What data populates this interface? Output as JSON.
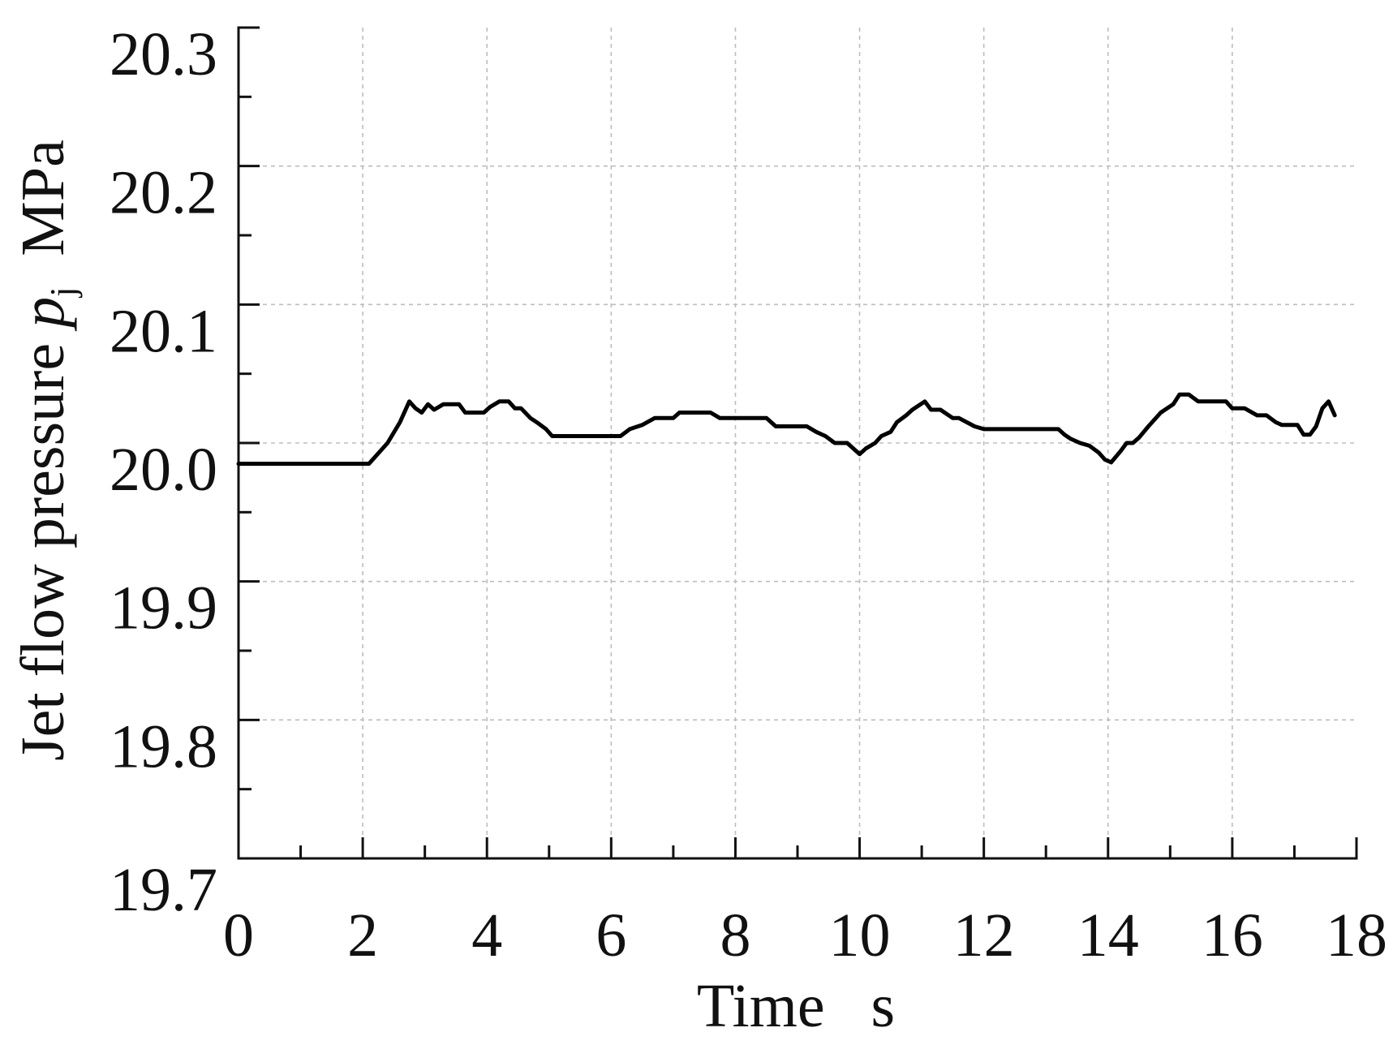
{
  "chart_data": {
    "type": "line",
    "xlabel": "Time   s",
    "ylabel": {
      "prefix": "Jet flow pressure ",
      "symbol": "p",
      "subscript": "j",
      "unit": "  MPa"
    },
    "xlim": [
      0,
      18
    ],
    "ylim": [
      19.7,
      20.3
    ],
    "x_ticks": [
      0,
      2,
      4,
      6,
      8,
      10,
      12,
      14,
      16,
      18
    ],
    "x_tick_labels": [
      "0",
      "2",
      "4",
      "6",
      "8",
      "10",
      "12",
      "14",
      "16",
      "18"
    ],
    "x_minor_step": 1,
    "y_ticks": [
      19.7,
      19.8,
      19.9,
      20.0,
      20.1,
      20.2,
      20.3
    ],
    "y_tick_labels": [
      "19.7",
      "19.8",
      "19.9",
      "20.0",
      "20.1",
      "20.2",
      "20.3"
    ],
    "y_minor_step": 0.05,
    "grid": true,
    "line_color": "#000000",
    "series": [
      {
        "x": [
          0,
          2.1,
          2.4,
          2.6,
          2.75,
          2.85,
          2.95,
          3.05,
          3.15,
          3.3,
          3.55,
          3.65,
          3.95,
          4.05,
          4.2,
          4.35,
          4.45,
          4.55,
          4.7,
          4.8,
          4.95,
          5.05,
          5.15,
          6.15,
          6.3,
          6.5,
          6.7,
          7.0,
          7.1,
          7.6,
          7.75,
          8.5,
          8.65,
          9.15,
          9.3,
          9.45,
          9.6,
          9.8,
          10.0,
          10.1,
          10.25,
          10.35,
          10.5,
          10.6,
          10.75,
          10.85,
          11.05,
          11.15,
          11.3,
          11.5,
          11.6,
          11.85,
          12.0,
          13.2,
          13.3,
          13.4,
          13.55,
          13.7,
          13.85,
          13.95,
          14.05,
          14.2,
          14.3,
          14.4,
          14.5,
          14.65,
          14.85,
          15.05,
          15.15,
          15.3,
          15.45,
          15.65,
          15.9,
          16.0,
          16.2,
          16.4,
          16.55,
          16.7,
          16.8,
          17.05,
          17.15,
          17.25,
          17.35,
          17.45,
          17.55,
          17.65
        ],
        "y": [
          19.985,
          19.985,
          20.0,
          20.015,
          20.03,
          20.025,
          20.022,
          20.028,
          20.024,
          20.028,
          20.028,
          20.022,
          20.022,
          20.026,
          20.03,
          20.03,
          20.025,
          20.025,
          20.018,
          20.015,
          20.01,
          20.005,
          20.005,
          20.005,
          20.01,
          20.013,
          20.018,
          20.018,
          20.022,
          20.022,
          20.018,
          20.018,
          20.012,
          20.012,
          20.008,
          20.005,
          20.0,
          20.0,
          19.992,
          19.996,
          20.0,
          20.005,
          20.008,
          20.015,
          20.02,
          20.024,
          20.03,
          20.024,
          20.024,
          20.018,
          20.018,
          20.012,
          20.01,
          20.01,
          20.006,
          20.003,
          20.0,
          19.998,
          19.993,
          19.988,
          19.986,
          19.994,
          20.0,
          20.0,
          20.004,
          20.012,
          20.022,
          20.028,
          20.035,
          20.035,
          20.03,
          20.03,
          20.03,
          20.025,
          20.025,
          20.02,
          20.02,
          20.015,
          20.013,
          20.013,
          20.006,
          20.006,
          20.012,
          20.025,
          20.03,
          20.02
        ]
      }
    ]
  }
}
